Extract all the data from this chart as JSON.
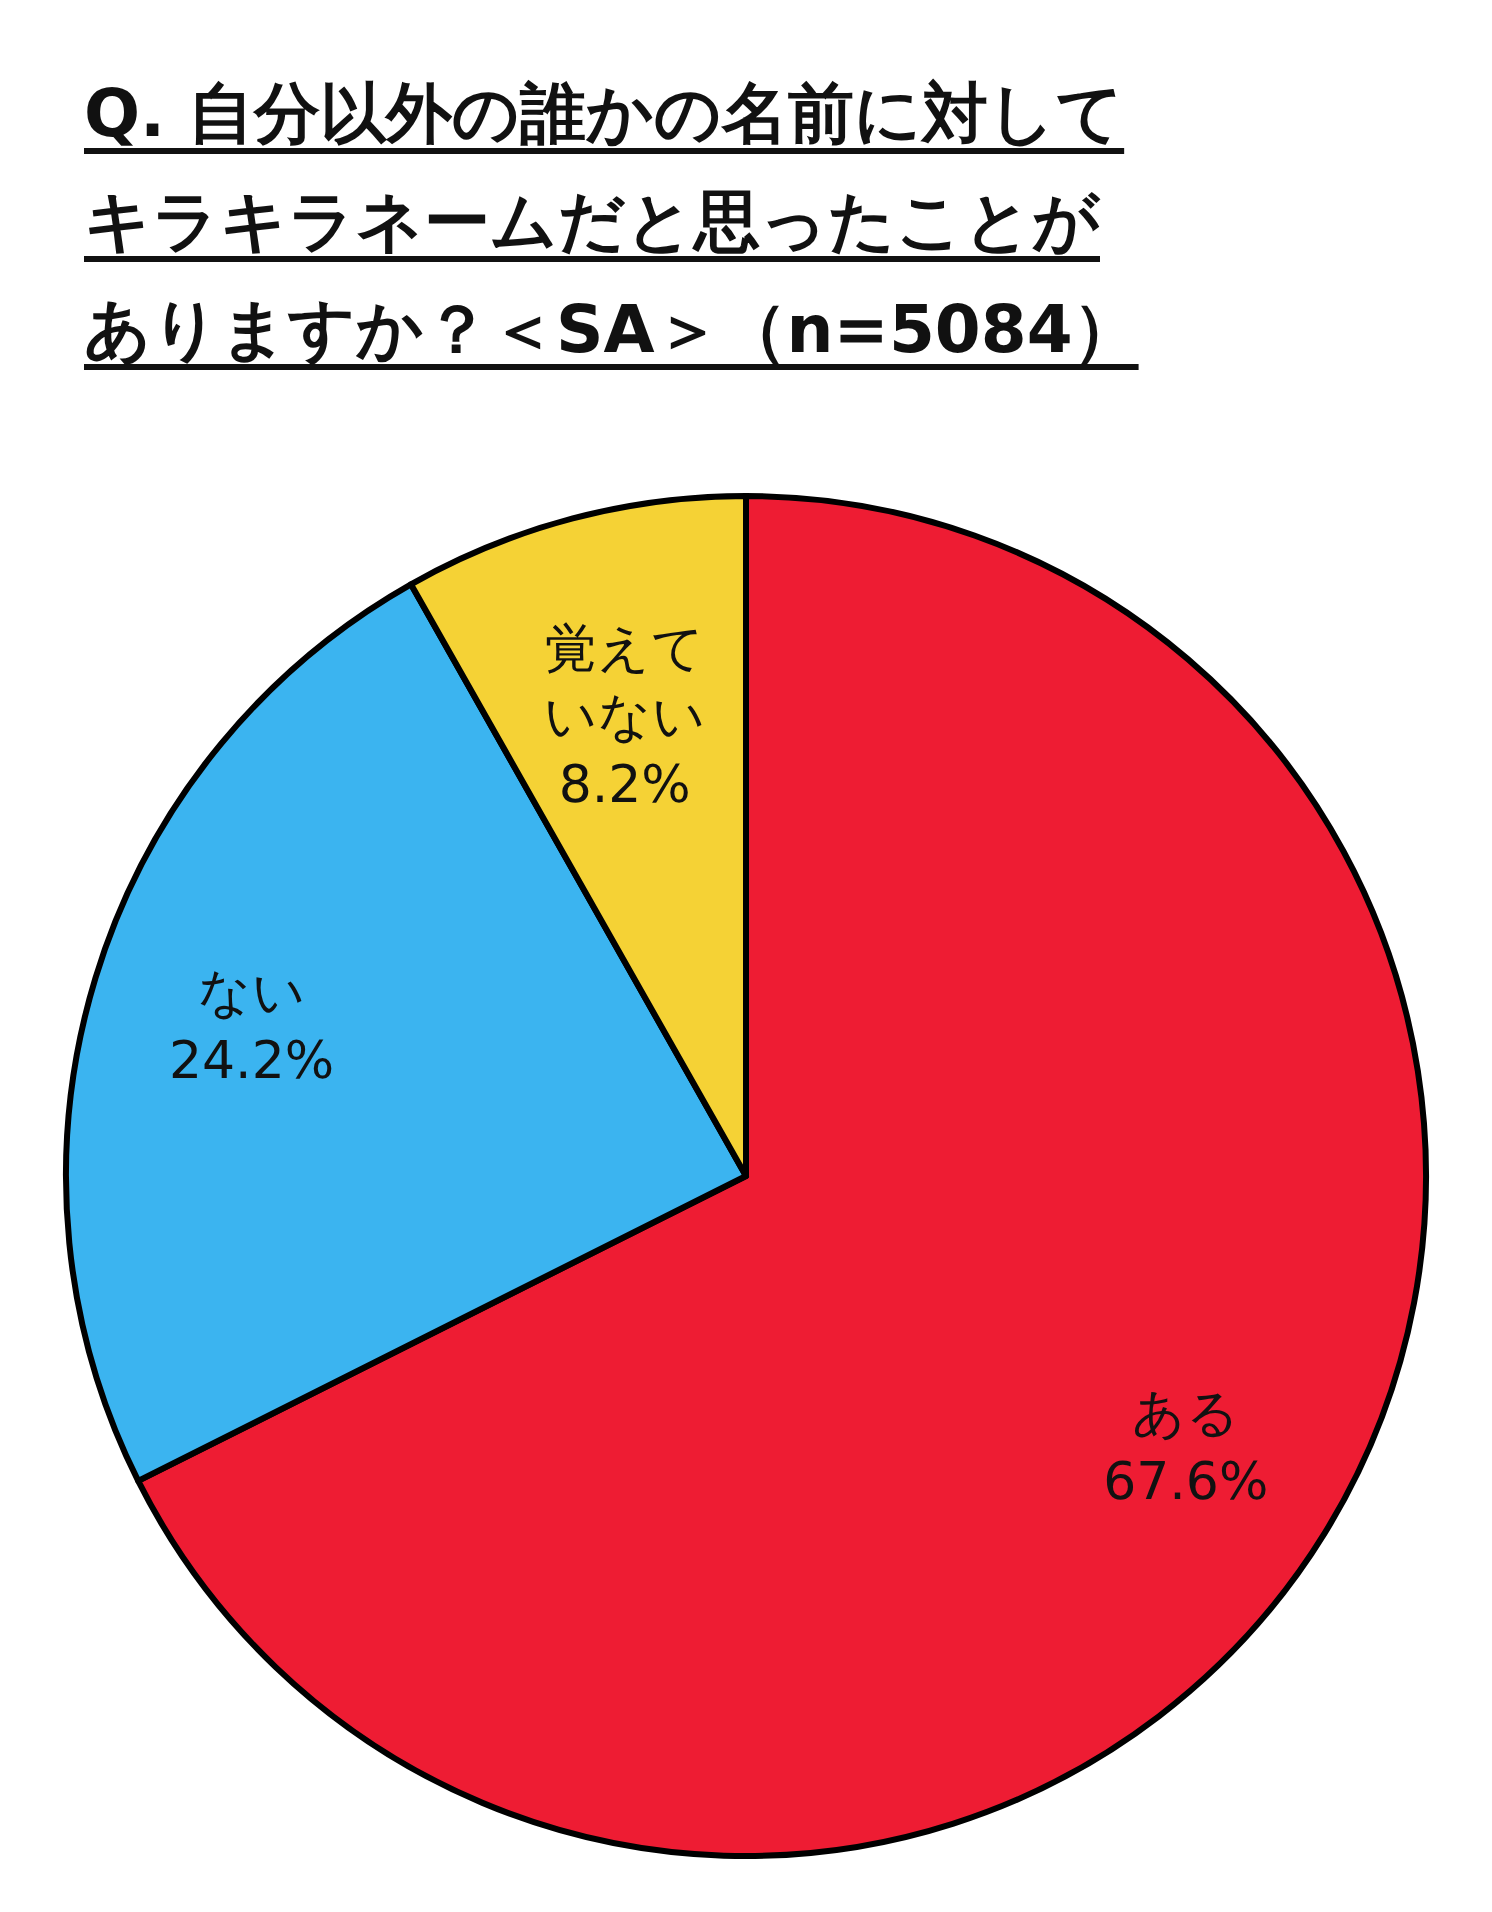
{
  "chart_data": {
    "type": "pie",
    "title": "Q. 自分以外の誰かの名前に対してキラキラネームだと思ったことがありますか？＜SA＞（n=5084）",
    "categories": [
      "ある",
      "ない",
      "覚えていない"
    ],
    "values": [
      67.6,
      24.2,
      8.2
    ],
    "colors": [
      "#ee1c33",
      "#3bb4f0",
      "#f5d235"
    ],
    "value_labels": [
      "67.6%",
      "24.2%",
      "8.2%"
    ]
  }
}
